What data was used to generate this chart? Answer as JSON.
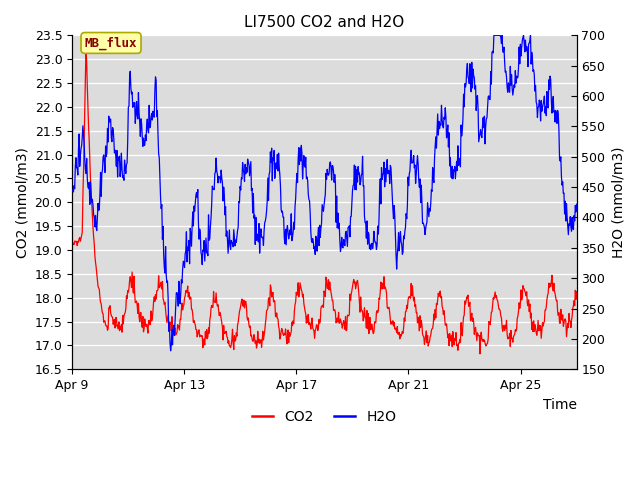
{
  "title": "LI7500 CO2 and H2O",
  "xlabel": "Time",
  "ylabel_left": "CO2 (mmol/m3)",
  "ylabel_right": "H2O (mmol/m3)",
  "ylim_left": [
    16.5,
    23.5
  ],
  "ylim_right": [
    150,
    700
  ],
  "yticks_left": [
    16.5,
    17.0,
    17.5,
    18.0,
    18.5,
    19.0,
    19.5,
    20.0,
    20.5,
    21.0,
    21.5,
    22.0,
    22.5,
    23.0,
    23.5
  ],
  "yticks_right": [
    150,
    200,
    250,
    300,
    350,
    400,
    450,
    500,
    550,
    600,
    650,
    700
  ],
  "xtick_labels": [
    "Apr 9",
    "Apr 13",
    "Apr 17",
    "Apr 21",
    "Apr 25"
  ],
  "xtick_days": [
    9,
    13,
    17,
    21,
    25
  ],
  "annotation_text": "MB_flux",
  "co2_color": "#FF0000",
  "h2o_color": "#0000FF",
  "bg_color": "#DCDCDC",
  "legend_co2": "CO2",
  "legend_h2o": "H2O",
  "n_points": 800,
  "total_days": 18
}
